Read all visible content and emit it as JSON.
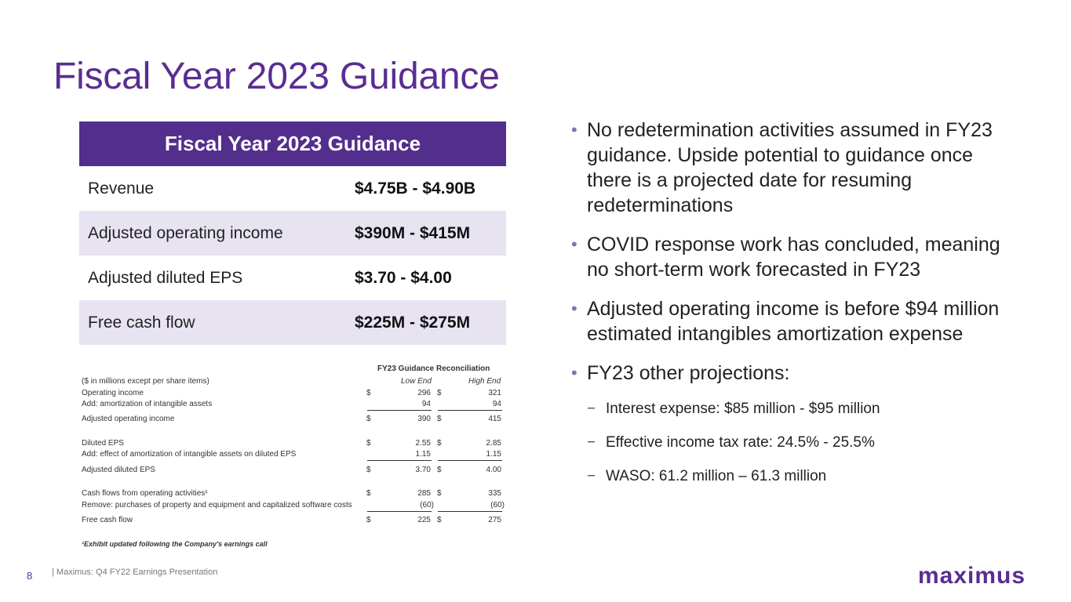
{
  "title": "Fiscal Year 2023 Guidance",
  "card": {
    "header": "Fiscal Year 2023 Guidance",
    "rows": [
      {
        "metric": "Revenue",
        "value": "$4.75B - $4.90B"
      },
      {
        "metric": "Adjusted operating income",
        "value": "$390M - $415M"
      },
      {
        "metric": "Adjusted diluted EPS",
        "value": "$3.70 - $4.00"
      },
      {
        "metric": "Free cash flow",
        "value": "$225M - $275M"
      }
    ]
  },
  "recon": {
    "title": "FY23 Guidance Reconciliation",
    "units_note": "($ in millions except per share items)",
    "col_low": "Low End",
    "col_high": "High End",
    "rows": [
      {
        "label": "Operating income",
        "cur": "$",
        "low": "296",
        "high": "321"
      },
      {
        "label": "Add: amortization of intangible assets",
        "cur": "",
        "low": "94",
        "high": "94"
      },
      {
        "label": "Adjusted operating income",
        "cur": "$",
        "low": "390",
        "high": "415"
      },
      {
        "label": "Diluted EPS",
        "cur": "$",
        "low": "2.55",
        "high": "2.85"
      },
      {
        "label": "Add: effect of amortization of intangible assets on diluted EPS",
        "cur": "",
        "low": "1.15",
        "high": "1.15"
      },
      {
        "label": "Adjusted diluted EPS",
        "cur": "$",
        "low": "3.70",
        "high": "4.00"
      },
      {
        "label": "Cash flows from operating activities¹",
        "cur": "$",
        "low": "285",
        "high": "335"
      },
      {
        "label": "Remove: purchases of property and equipment and capitalized software costs",
        "cur": "",
        "low": "(60)",
        "high": "(60)"
      },
      {
        "label": "Free cash flow",
        "cur": "$",
        "low": "225",
        "high": "275"
      }
    ],
    "footnote": "¹Exhibit updated following the Company's earnings call"
  },
  "bullets": [
    "No redetermination activities assumed in FY23 guidance. Upside potential to guidance once there is a projected date for resuming redeterminations",
    "COVID response work has concluded, meaning no short-term work forecasted in FY23",
    "Adjusted operating income is before $94 million estimated intangibles amortization expense",
    "FY23 other projections:"
  ],
  "sub_bullets": [
    "Interest expense: $85 million - $95 million",
    "Effective income tax rate: 24.5% - 25.5%",
    "WASO: 61.2 million – 61.3 million"
  ],
  "footer": {
    "page_number": "8",
    "text": "|   Maximus: Q4 FY22 Earnings Presentation"
  },
  "logo_text": "maximus",
  "colors": {
    "brand_purple": "#532e8c",
    "row_alt": "#e8e3f1",
    "title_purple": "#5a2d91"
  }
}
